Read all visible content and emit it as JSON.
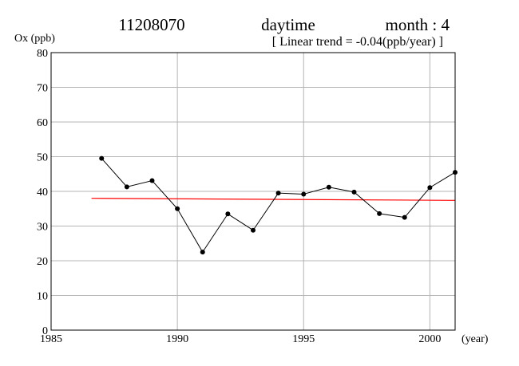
{
  "header": {
    "station": "11208070",
    "period": "daytime",
    "month_label": "month : 4",
    "trend_label": "[ Linear trend = -0.04(ppb/year) ]"
  },
  "chart_data": {
    "type": "line",
    "ylabel": "Ox (ppb)",
    "xlabel": "(year)",
    "xlim": [
      1985,
      2001
    ],
    "ylim": [
      0,
      80
    ],
    "x_ticks": [
      1985,
      1990,
      1995,
      2000
    ],
    "y_ticks": [
      0,
      10,
      20,
      30,
      40,
      50,
      60,
      70,
      80
    ],
    "grid": true,
    "series": [
      {
        "color": "#000000",
        "x": [
          1987,
          1988,
          1989,
          1990,
          1991,
          1992,
          1993,
          1994,
          1995,
          1996,
          1997,
          1998,
          1999,
          2000,
          2001
        ],
        "y": [
          49.5,
          41.3,
          43.1,
          35.0,
          22.5,
          33.5,
          28.8,
          39.5,
          39.2,
          41.2,
          39.8,
          33.6,
          32.5,
          41.1,
          45.5
        ]
      }
    ],
    "trend": {
      "color": "#ff0000",
      "x": [
        1986.6,
        2001
      ],
      "y": [
        38.0,
        37.4
      ]
    }
  }
}
